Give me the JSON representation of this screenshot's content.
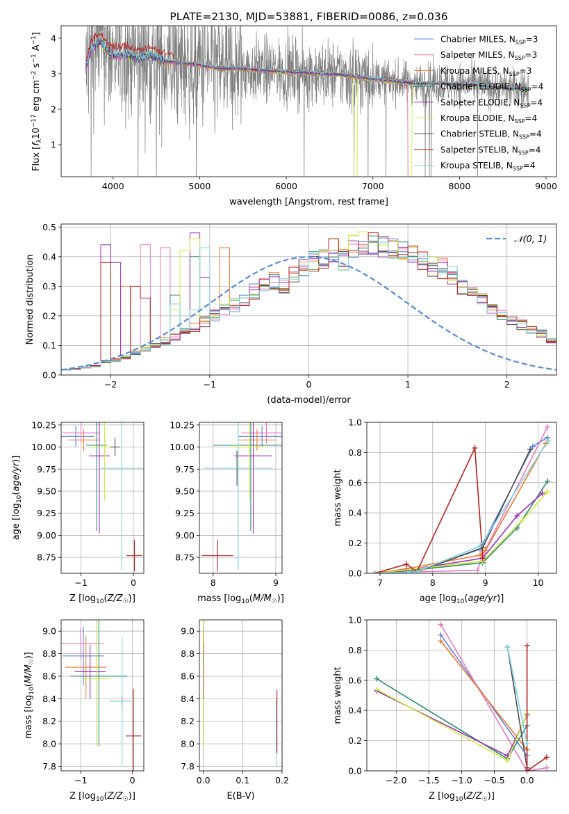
{
  "colors": {
    "C1": "#5b7fd6",
    "C2": "#e377c2",
    "C3": "#e8772e",
    "C4": "#2f8a73",
    "C5": "#9b30b8",
    "C6": "#cfe83c",
    "C7": "#4d4d4d",
    "C8": "#b22222",
    "C9": "#7ed3dc",
    "data": "#808080",
    "normal": "#5b8ad6"
  },
  "chart_data": [
    {
      "type": "line",
      "title": "PLATE=2130, MJD=53881, FIBERID=0086, z=0.036",
      "xlabel": "wavelength [Angstrom, rest frame]",
      "ylabel": "Flux [f_λ 10^-17 erg cm^-2 s^-1 A^-1]",
      "xlim": [
        3400,
        9120
      ],
      "ylim": [
        0.1,
        4.35
      ],
      "xticks": [
        4000,
        5000,
        6000,
        7000,
        8000,
        9000
      ],
      "yticks": [
        1,
        2,
        3,
        4
      ],
      "legend_position": "upper right",
      "legend": [
        {
          "label": "Chabrier MILES, N",
          "sub": "SSP",
          "tail": "=3",
          "color": "C1"
        },
        {
          "label": "Salpeter MILES, N",
          "sub": "SSP",
          "tail": "=3",
          "color": "C2"
        },
        {
          "label": "Kroupa MILES, N",
          "sub": "SSP",
          "tail": "=3",
          "color": "C3"
        },
        {
          "label": "Chabrier ELODIE, N",
          "sub": "SSP",
          "tail": "=4",
          "color": "C4"
        },
        {
          "label": "Salpeter ELODIE, N",
          "sub": "SSP",
          "tail": "=4",
          "color": "C5"
        },
        {
          "label": "Kroupa ELODIE, N",
          "sub": "SSP",
          "tail": "=4",
          "color": "C6"
        },
        {
          "label": "Chabrier STELIB, N",
          "sub": "SSP",
          "tail": "=4",
          "color": "C7"
        },
        {
          "label": "Salpeter STELIB, N",
          "sub": "SSP",
          "tail": "=4",
          "color": "C8"
        },
        {
          "label": "Kroupa STELIB, N",
          "sub": "SSP",
          "tail": "=4",
          "color": "C9"
        }
      ],
      "model_continuum": [
        [
          3680,
          3.1
        ],
        [
          3750,
          3.7
        ],
        [
          3850,
          3.9
        ],
        [
          3950,
          3.6
        ],
        [
          4050,
          3.5
        ],
        [
          4150,
          3.55
        ],
        [
          4300,
          3.45
        ],
        [
          4450,
          3.5
        ],
        [
          4600,
          3.35
        ],
        [
          4800,
          3.3
        ],
        [
          5000,
          3.25
        ],
        [
          5200,
          3.15
        ],
        [
          5400,
          3.15
        ],
        [
          5600,
          3.12
        ],
        [
          5800,
          3.08
        ],
        [
          6000,
          3.05
        ],
        [
          6200,
          3.03
        ],
        [
          6400,
          3.0
        ],
        [
          6600,
          2.98
        ],
        [
          6800,
          2.92
        ],
        [
          7000,
          2.85
        ],
        [
          7200,
          2.8
        ],
        [
          7400,
          2.75
        ],
        [
          7550,
          2.72
        ],
        [
          7800,
          2.72
        ],
        [
          8000,
          2.7
        ],
        [
          8200,
          2.68
        ],
        [
          8400,
          2.62
        ],
        [
          8600,
          2.58
        ],
        [
          8800,
          2.55
        ]
      ]
    },
    {
      "type": "step",
      "xlabel": "(data-model)/error",
      "ylabel": "Normed distribution",
      "xlim": [
        -2.5,
        2.5
      ],
      "ylim": [
        0,
        0.51
      ],
      "xticks": [
        -2,
        -1,
        0,
        1,
        2
      ],
      "yticks": [
        0.0,
        0.1,
        0.2,
        0.3,
        0.4,
        0.5
      ],
      "legend": "𝒩(0, 1)",
      "legend_position": "upper right",
      "bin_width": 0.1,
      "base_histogram": [
        0.018,
        0.02,
        0.025,
        0.03,
        0.045,
        0.05,
        0.06,
        0.075,
        0.085,
        0.1,
        0.115,
        0.13,
        0.145,
        0.16,
        0.18,
        0.2,
        0.22,
        0.235,
        0.25,
        0.28,
        0.3,
        0.32,
        0.3,
        0.34,
        0.36,
        0.38,
        0.4,
        0.42,
        0.39,
        0.43,
        0.44,
        0.45,
        0.43,
        0.42,
        0.41,
        0.42,
        0.38,
        0.37,
        0.36,
        0.34,
        0.3,
        0.28,
        0.25,
        0.22,
        0.2,
        0.18,
        0.17,
        0.15,
        0.14,
        0.12,
        0.11,
        0.1,
        0.09,
        0.08,
        0.065,
        0.055,
        0.045,
        0.04,
        0.035,
        0.03,
        0.025,
        0.02,
        0.018,
        0.015,
        0.012,
        0.012,
        0.01,
        0.01,
        0.008,
        0.008
      ]
    },
    {
      "type": "errorbar",
      "xlabel": "Z [log10(Z/Z☉)]",
      "ylabel": "age [log10(age/yr)]",
      "xlim": [
        -1.38,
        0.2
      ],
      "ylim": [
        8.57,
        10.28
      ],
      "xticks": [
        -1,
        0
      ],
      "yticks": [
        8.75,
        9.0,
        9.25,
        9.5,
        9.75,
        10.0,
        10.25
      ],
      "points": [
        {
          "color": "C1",
          "x": -1.1,
          "xerr": 0.35,
          "y": 10.12,
          "yerr": 0.12
        },
        {
          "color": "C2",
          "x": -1.0,
          "xerr": 0.35,
          "y": 10.16,
          "yerr": 0.12
        },
        {
          "color": "C3",
          "x": -0.95,
          "xerr": 0.3,
          "y": 10.08,
          "yerr": 0.12
        },
        {
          "color": "C4",
          "x": -0.7,
          "xerr": 0.2,
          "y": 10.02,
          "yerr": 0.97
        },
        {
          "color": "C5",
          "x": -0.65,
          "xerr": 0.2,
          "y": 9.9,
          "yerr": 0.88
        },
        {
          "color": "C6",
          "x": -0.55,
          "xerr": 0.25,
          "y": 10.0,
          "yerr": 0.6
        },
        {
          "color": "C7",
          "x": -0.35,
          "xerr": 0.1,
          "y": 10.0,
          "yerr": 0.1
        },
        {
          "color": "C8",
          "x": 0.02,
          "xerr": 0.15,
          "y": 8.77,
          "yerr": 0.18
        },
        {
          "color": "C9",
          "x": -0.22,
          "xerr": 0.4,
          "y": 9.76,
          "yerr": 1.15
        }
      ]
    },
    {
      "type": "errorbar",
      "xlabel": "mass [log10(M/M☉)]",
      "ylabel": "",
      "xlim": [
        7.78,
        9.1
      ],
      "ylim": [
        8.57,
        10.28
      ],
      "xticks": [
        8,
        9
      ],
      "yticks": [
        8.75,
        9.0,
        9.25,
        9.5,
        9.75,
        10.0,
        10.25
      ],
      "points": [
        {
          "color": "C1",
          "x": 8.78,
          "xerr": 0.38,
          "y": 10.12,
          "yerr": 0.12
        },
        {
          "color": "C2",
          "x": 8.85,
          "xerr": 0.4,
          "y": 10.16,
          "yerr": 0.12
        },
        {
          "color": "C3",
          "x": 8.7,
          "xerr": 0.3,
          "y": 10.08,
          "yerr": 0.12
        },
        {
          "color": "C4",
          "x": 8.6,
          "xerr": 0.6,
          "y": 10.02,
          "yerr": 0.97
        },
        {
          "color": "C5",
          "x": 8.64,
          "xerr": 0.3,
          "y": 9.9,
          "yerr": 0.88
        },
        {
          "color": "C6",
          "x": 8.58,
          "xerr": 0.3,
          "y": 10.0,
          "yerr": 0.6
        },
        {
          "color": "C7",
          "x": 8.38,
          "xerr": 0.45,
          "y": 9.76,
          "yerr": 0.2
        },
        {
          "color": "C8",
          "x": 8.07,
          "xerr": 0.25,
          "y": 8.77,
          "yerr": 0.18
        },
        {
          "color": "C9",
          "x": 8.4,
          "xerr": 0.55,
          "y": 9.76,
          "yerr": 1.15
        }
      ]
    },
    {
      "type": "line",
      "xlabel": "age [log10(age/yr)]",
      "ylabel": "mass weight",
      "xlim": [
        6.75,
        10.35
      ],
      "ylim": [
        0,
        1
      ],
      "xticks": [
        7,
        8,
        9,
        10
      ],
      "yticks": [
        0.0,
        0.2,
        0.4,
        0.6,
        0.8,
        1.0
      ],
      "series": [
        {
          "color": "C1",
          "x": [
            6.9,
            7.7,
            8.9,
            9.9,
            10.18
          ],
          "y": [
            0.0,
            0.01,
            0.16,
            0.84,
            0.9
          ]
        },
        {
          "color": "C2",
          "x": [
            6.9,
            7.7,
            8.85,
            8.95,
            10.18
          ],
          "y": [
            0.0,
            0.01,
            0.02,
            0.12,
            0.97
          ]
        },
        {
          "color": "C3",
          "x": [
            6.9,
            7.5,
            8.9,
            9.0,
            10.15
          ],
          "y": [
            0.0,
            0.03,
            0.12,
            0.15,
            0.86
          ]
        },
        {
          "color": "C4",
          "x": [
            6.9,
            7.6,
            8.95,
            9.6,
            10.18
          ],
          "y": [
            0.0,
            0.02,
            0.07,
            0.3,
            0.61
          ]
        },
        {
          "color": "C5",
          "x": [
            6.9,
            7.5,
            8.95,
            9.6,
            10.08
          ],
          "y": [
            0.0,
            0.02,
            0.1,
            0.38,
            0.53
          ]
        },
        {
          "color": "C6",
          "x": [
            6.9,
            7.7,
            8.95,
            9.7,
            10.18
          ],
          "y": [
            0.0,
            0.03,
            0.08,
            0.35,
            0.54
          ]
        },
        {
          "color": "C7",
          "x": [
            6.9,
            7.7,
            8.95,
            9.85
          ],
          "y": [
            0.0,
            0.01,
            0.17,
            0.82
          ]
        },
        {
          "color": "C8",
          "x": [
            6.9,
            7.5,
            7.7,
            8.8,
            8.95
          ],
          "y": [
            0.0,
            0.06,
            0.01,
            0.83,
            0.1
          ]
        },
        {
          "color": "C9",
          "x": [
            6.9,
            7.7,
            8.9,
            10.2
          ],
          "y": [
            0.0,
            0.01,
            0.18,
            0.88
          ]
        }
      ]
    },
    {
      "type": "errorbar",
      "xlabel": "Z [log10(Z/Z☉)]",
      "ylabel": "mass [log10(M/M☉)]",
      "xlim": [
        -1.38,
        0.22
      ],
      "ylim": [
        7.76,
        9.1
      ],
      "xticks": [
        -1,
        0
      ],
      "yticks": [
        7.8,
        8.0,
        8.2,
        8.4,
        8.6,
        8.8,
        9.0
      ],
      "points": [
        {
          "color": "C1",
          "x": -0.95,
          "xerr": 0.4,
          "y": 8.78,
          "yerr": 0.26
        },
        {
          "color": "C2",
          "x": -1.0,
          "xerr": 0.45,
          "y": 8.89,
          "yerr": 0.14
        },
        {
          "color": "C3",
          "x": -0.9,
          "xerr": 0.4,
          "y": 8.68,
          "yerr": 0.28
        },
        {
          "color": "C4",
          "x": -0.65,
          "xerr": 0.55,
          "y": 8.6,
          "yerr": 0.62
        },
        {
          "color": "C5",
          "x": -0.82,
          "xerr": 0.3,
          "y": 8.64,
          "yerr": 0.24
        },
        {
          "color": "C6",
          "x": -0.7,
          "xerr": 0.25,
          "y": 8.58,
          "yerr": 0.6
        },
        {
          "color": "C7",
          "x": -0.2,
          "xerr": 0.25,
          "y": 8.38,
          "yerr": 0.04
        },
        {
          "color": "C8",
          "x": 0.02,
          "xerr": 0.15,
          "y": 8.07,
          "yerr": 0.42
        },
        {
          "color": "C9",
          "x": -0.2,
          "xerr": 0.25,
          "y": 8.38,
          "yerr": 0.57
        }
      ]
    },
    {
      "type": "errorbar",
      "xlabel": "E(B-V)",
      "ylabel": "",
      "xlim": [
        -0.01,
        0.2
      ],
      "ylim": [
        7.76,
        9.1
      ],
      "xticks": [
        0.0,
        0.1,
        0.2
      ],
      "yticks": [
        7.8,
        8.0,
        8.2,
        8.4,
        8.6,
        8.8,
        9.0
      ],
      "points": [
        {
          "color": "C2",
          "x": 0.0,
          "xerr": 0.0,
          "y": 8.89,
          "yerr": 0.14
        },
        {
          "color": "C3",
          "x": 0.0,
          "xerr": 0.0,
          "y": 8.68,
          "yerr": 0.28
        },
        {
          "color": "C5",
          "x": 0.0,
          "xerr": 0.0,
          "y": 8.64,
          "yerr": 0.24
        },
        {
          "color": "C6",
          "x": 0.001,
          "xerr": 0.0,
          "y": 8.58,
          "yerr": 0.6
        },
        {
          "color": "C8",
          "x": 0.187,
          "xerr": 0.0,
          "y": 8.2,
          "yerr": 0.28
        },
        {
          "color": "C9",
          "x": 0.185,
          "xerr": 0.0,
          "y": 8.1,
          "yerr": 0.3
        }
      ]
    },
    {
      "type": "line",
      "xlabel": "Z [log10(Z/Z☉)]",
      "ylabel": "mass weight",
      "xlim": [
        -2.45,
        0.45
      ],
      "ylim": [
        0,
        1
      ],
      "xticks": [
        -2.0,
        -1.5,
        -1.0,
        -0.5,
        0.0
      ],
      "yticks": [
        0.0,
        0.2,
        0.4,
        0.6,
        0.8,
        1.0
      ],
      "series": [
        {
          "color": "C1",
          "x": [
            -1.32,
            0.0
          ],
          "y": [
            0.9,
            0.1
          ]
        },
        {
          "color": "C2",
          "x": [
            -1.32,
            0.0,
            0.3
          ],
          "y": [
            0.97,
            0.0,
            0.02
          ]
        },
        {
          "color": "C3",
          "x": [
            -1.32,
            0.0
          ],
          "y": [
            0.86,
            0.14
          ]
        },
        {
          "color": "C4",
          "x": [
            -2.3,
            -0.3,
            0.0
          ],
          "y": [
            0.61,
            0.08,
            0.3
          ]
        },
        {
          "color": "C5",
          "x": [
            -2.3,
            -0.3,
            0.0
          ],
          "y": [
            0.53,
            0.1,
            0.37
          ]
        },
        {
          "color": "C6",
          "x": [
            -2.3,
            -0.3,
            0.0
          ],
          "y": [
            0.54,
            0.07,
            0.38
          ]
        },
        {
          "color": "C7",
          "x": [
            -0.3,
            0.0
          ],
          "y": [
            0.82,
            0.02
          ]
        },
        {
          "color": "C8",
          "x": [
            0.0,
            0.0,
            0.3
          ],
          "y": [
            0.83,
            0.0,
            0.09
          ]
        },
        {
          "color": "C9",
          "x": [
            -0.3,
            0.0
          ],
          "y": [
            0.82,
            0.18
          ]
        }
      ]
    }
  ]
}
